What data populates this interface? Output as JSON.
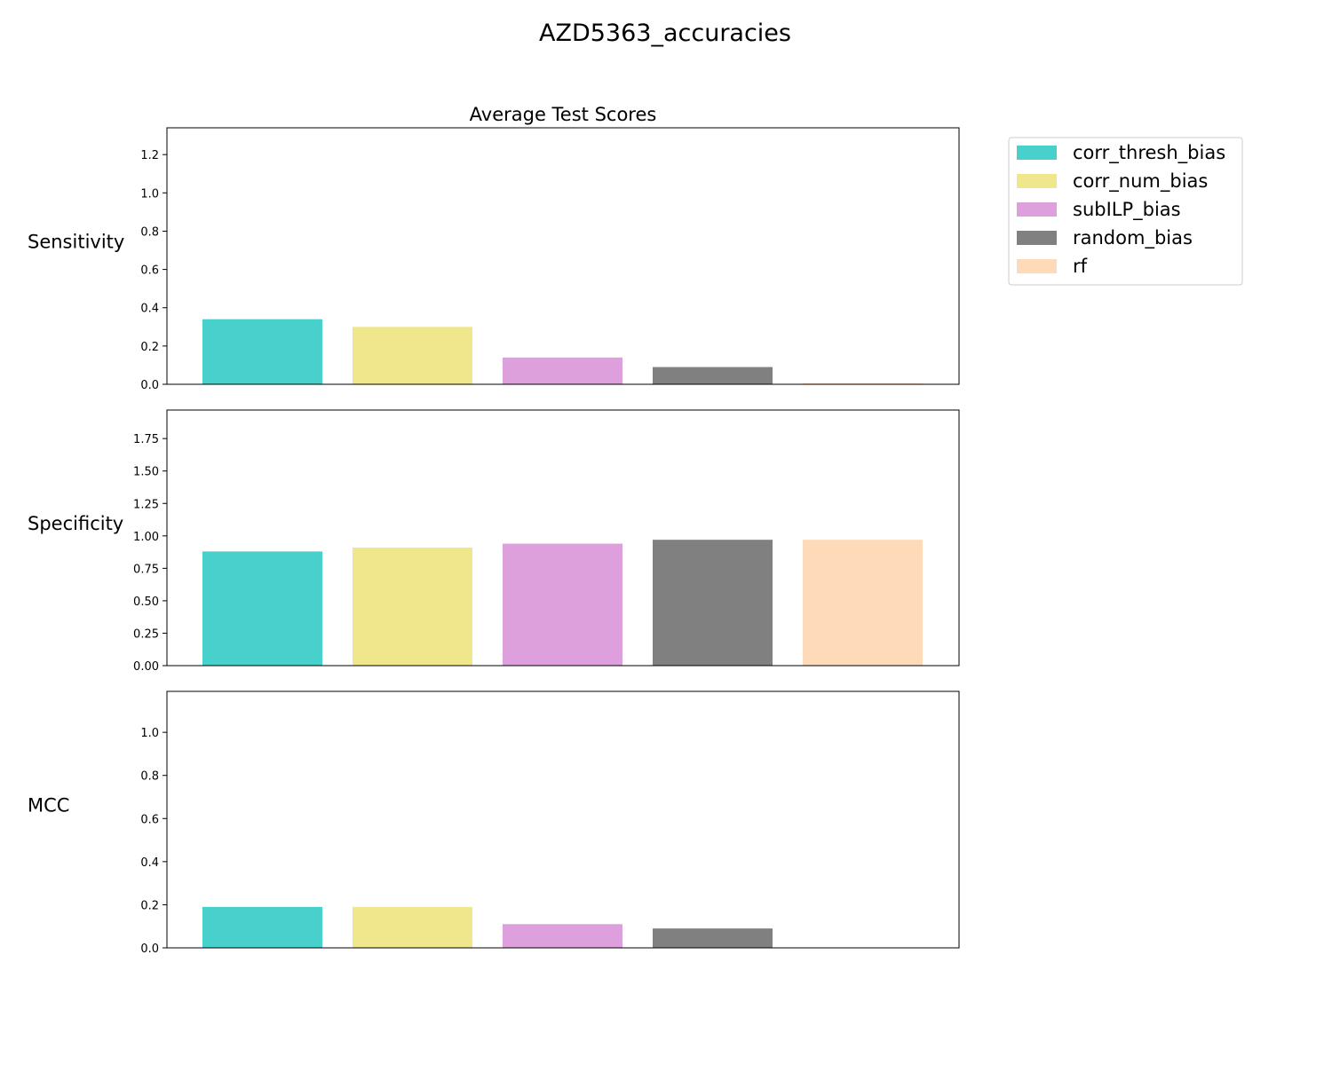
{
  "figure": {
    "suptitle": "AZD5363_accuracies",
    "subtitle": "Average Test Scores"
  },
  "legend": {
    "placement": "outside-right-top",
    "items": [
      {
        "label": "corr_thresh_bias",
        "color": "#48d1cc"
      },
      {
        "label": "corr_num_bias",
        "color": "#f0e68c"
      },
      {
        "label": "subILP_bias",
        "color": "#dda0dd"
      },
      {
        "label": "random_bias",
        "color": "#808080"
      },
      {
        "label": "rf",
        "color": "#ffdab9"
      }
    ]
  },
  "chart_data": [
    {
      "type": "bar",
      "row_label": "Sensitivity",
      "categories": [
        "corr_thresh_bias",
        "corr_num_bias",
        "subILP_bias",
        "random_bias",
        "rf"
      ],
      "values": [
        0.34,
        0.3,
        0.14,
        0.09,
        0.005
      ],
      "ylim": [
        0,
        1.34
      ],
      "yticks": [
        "0.0",
        "0.2",
        "0.4",
        "0.6",
        "0.8",
        "1.0",
        "1.2"
      ],
      "grid": false,
      "colors": [
        "#48d1cc",
        "#f0e68c",
        "#dda0dd",
        "#808080",
        "#ffdab9"
      ]
    },
    {
      "type": "bar",
      "row_label": "Specificity",
      "categories": [
        "corr_thresh_bias",
        "corr_num_bias",
        "subILP_bias",
        "random_bias",
        "rf"
      ],
      "values": [
        0.88,
        0.91,
        0.94,
        0.97,
        0.97
      ],
      "ylim": [
        0,
        1.97
      ],
      "yticks": [
        "0.00",
        "0.25",
        "0.50",
        "0.75",
        "1.00",
        "1.25",
        "1.50",
        "1.75"
      ],
      "grid": false,
      "colors": [
        "#48d1cc",
        "#f0e68c",
        "#dda0dd",
        "#808080",
        "#ffdab9"
      ]
    },
    {
      "type": "bar",
      "row_label": "MCC",
      "categories": [
        "corr_thresh_bias",
        "corr_num_bias",
        "subILP_bias",
        "random_bias",
        "rf"
      ],
      "values": [
        0.19,
        0.19,
        0.11,
        0.09,
        0.0
      ],
      "ylim": [
        0,
        1.19
      ],
      "yticks": [
        "0.0",
        "0.2",
        "0.4",
        "0.6",
        "0.8",
        "1.0"
      ],
      "grid": false,
      "colors": [
        "#48d1cc",
        "#f0e68c",
        "#dda0dd",
        "#808080",
        "#ffdab9"
      ]
    }
  ]
}
